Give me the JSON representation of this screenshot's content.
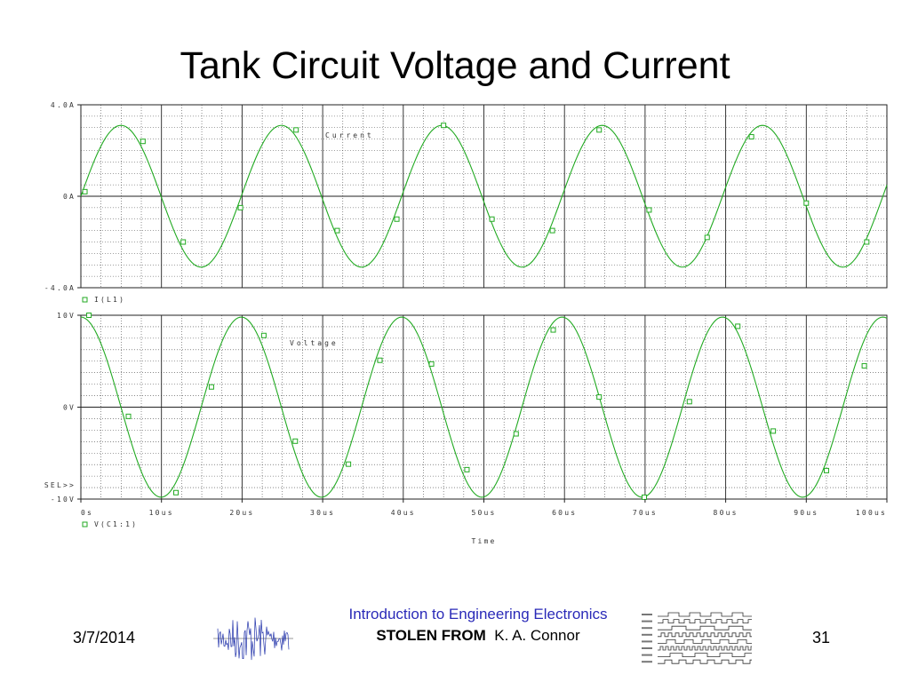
{
  "slide": {
    "title": "Tank Circuit Voltage and Current",
    "footer": {
      "date": "3/7/2014",
      "course": "Introduction to Engineering Electronics",
      "credit_prefix": "STOLEN FROM",
      "credit_name": "K. A. Connor",
      "page": "31"
    }
  },
  "chart_data": [
    {
      "type": "line",
      "panel": "top",
      "title": "",
      "xlabel": "",
      "ylabel": "",
      "ylim": [
        -4.0,
        4.0
      ],
      "xlim": [
        0,
        100
      ],
      "yticks": [
        "4.0A",
        "0A",
        "-4.0A"
      ],
      "grid": true,
      "annotation": "Current",
      "legend": "I(L1)",
      "series": [
        {
          "name": "I(L1)",
          "color": "#22aa22",
          "amplitude": 3.1,
          "period_us": 19.9,
          "phase": "sin",
          "marker": "square",
          "x": [
            0.5,
            7.7,
            12.7,
            19.8,
            26.7,
            31.8,
            39.2,
            45.0,
            51.0,
            58.5,
            64.3,
            70.5,
            77.7,
            83.2,
            90.0,
            97.5
          ],
          "y": [
            0.2,
            2.4,
            -2.0,
            -0.5,
            2.9,
            -1.5,
            -1.0,
            3.1,
            -1.0,
            -1.5,
            2.9,
            -0.6,
            -1.8,
            2.6,
            -0.3,
            -2.0
          ]
        }
      ]
    },
    {
      "type": "line",
      "panel": "bottom",
      "title": "",
      "xlabel": "Time",
      "ylabel": "",
      "ylim": [
        -10,
        10
      ],
      "xlim": [
        0,
        100
      ],
      "yticks": [
        "10V",
        "0V",
        "-10V"
      ],
      "xticks": [
        "0s",
        "10us",
        "20us",
        "30us",
        "40us",
        "50us",
        "60us",
        "70us",
        "80us",
        "90us",
        "100us"
      ],
      "grid": true,
      "annotation": "Voltage",
      "legend": "V(C1:1)",
      "cursor_label": "SEL>>",
      "series": [
        {
          "name": "V(C1:1)",
          "color": "#22aa22",
          "amplitude": 9.8,
          "period_us": 19.9,
          "phase": "cos",
          "marker": "square",
          "x": [
            1.0,
            5.9,
            11.8,
            16.2,
            22.7,
            26.6,
            33.2,
            37.1,
            43.5,
            47.9,
            54.0,
            58.6,
            64.3,
            69.9,
            75.5,
            81.5,
            85.9,
            92.5,
            97.2
          ],
          "y": [
            10.0,
            -1.0,
            -9.3,
            2.2,
            7.8,
            -3.7,
            -6.2,
            5.1,
            4.7,
            -6.8,
            -2.9,
            8.4,
            1.1,
            -9.8,
            0.6,
            8.8,
            -2.6,
            -6.9,
            4.5
          ]
        }
      ]
    }
  ]
}
